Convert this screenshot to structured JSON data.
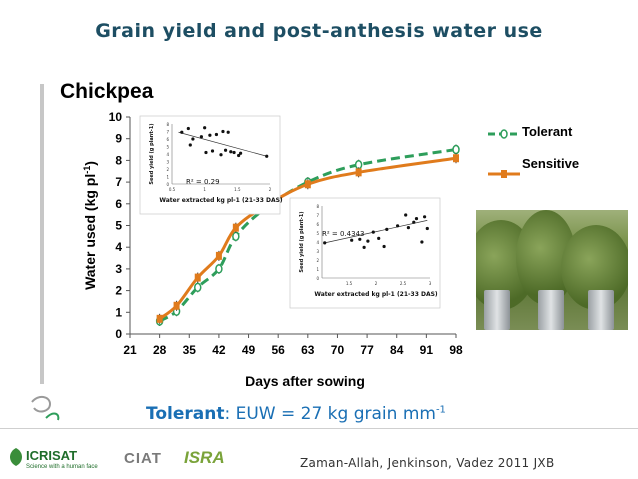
{
  "slide": {
    "title": "Grain yield and post-anthesis water use",
    "section": "Chickpea",
    "efficiency_label": "Tolerant",
    "efficiency_text": ": EUW = 27 kg grain mm",
    "efficiency_exp": "-1",
    "citation": "Zaman-Allah, Jenkinson, Vadez 2011 JXB",
    "logos": [
      "ICRISAT",
      "Science with a human face",
      "CIAT",
      "ISRA"
    ]
  },
  "colors": {
    "title": "#1d4e63",
    "tolerant": "#2e9e5b",
    "sensitive": "#e07b1c",
    "efficiency_text": "#1a6fb4"
  },
  "chart_data": [
    {
      "type": "line",
      "xlabel": "Days after sowing",
      "ylabel": "Water used (kg pl-1)",
      "xlim": [
        21,
        98
      ],
      "ylim": [
        0,
        10
      ],
      "xticks": [
        21,
        28,
        35,
        42,
        49,
        56,
        63,
        70,
        77,
        84,
        91,
        98
      ],
      "yticks": [
        0,
        1,
        2,
        3,
        4,
        5,
        6,
        7,
        8,
        9,
        10
      ],
      "grid": false,
      "legend": "right",
      "series": [
        {
          "name": "Tolerant",
          "style": "dashed",
          "color": "#2e9e5b",
          "x": [
            28,
            32,
            37,
            42,
            46,
            53,
            63,
            75,
            98
          ],
          "y": [
            0.6,
            1.05,
            2.15,
            3.0,
            4.5,
            5.8,
            7.0,
            7.8,
            8.5
          ]
        },
        {
          "name": "Sensitive",
          "style": "solid",
          "color": "#e07b1c",
          "x": [
            28,
            32,
            37,
            42,
            46,
            53,
            63,
            75,
            98
          ],
          "y": [
            0.7,
            1.3,
            2.6,
            3.6,
            4.9,
            5.9,
            6.9,
            7.45,
            8.1
          ]
        }
      ]
    },
    {
      "type": "scatter",
      "xlabel": "Water extracted kg pl-1 (21-33 DAS)",
      "ylabel": "Seed yield (g plant-1)",
      "annotation": "R² = 0.29",
      "xlim": [
        0.5,
        2.0
      ],
      "ylim": [
        0,
        8
      ],
      "xticks": [
        "0.5",
        "1",
        "1.5",
        "2"
      ],
      "yticks": [
        "0",
        "1",
        "2",
        "3",
        "4",
        "5",
        "6",
        "7",
        "8"
      ],
      "trend": {
        "x": [
          0.6,
          1.95
        ],
        "y": [
          6.9,
          3.7
        ]
      },
      "points": [
        [
          0.65,
          6.9
        ],
        [
          0.75,
          7.4
        ],
        [
          0.78,
          5.2
        ],
        [
          0.82,
          6.0
        ],
        [
          0.95,
          6.3
        ],
        [
          1.0,
          7.5
        ],
        [
          1.02,
          4.2
        ],
        [
          1.08,
          6.5
        ],
        [
          1.12,
          4.4
        ],
        [
          1.18,
          6.6
        ],
        [
          1.25,
          3.9
        ],
        [
          1.28,
          7.0
        ],
        [
          1.32,
          4.5
        ],
        [
          1.36,
          6.9
        ],
        [
          1.4,
          4.3
        ],
        [
          1.45,
          4.2
        ],
        [
          1.52,
          3.8
        ],
        [
          1.55,
          4.1
        ],
        [
          1.95,
          3.7
        ]
      ]
    },
    {
      "type": "scatter",
      "xlabel": "Water extracted kg pl-1 (21-33 DAS)",
      "ylabel": "Seed yield (g plant-1)",
      "annotation": "R² = 0.4343",
      "xlim": [
        1.0,
        3.0
      ],
      "ylim": [
        0,
        8
      ],
      "xticks": [
        "1.5",
        "2",
        "2.5",
        "3"
      ],
      "yticks": [
        "0",
        "1",
        "2",
        "3",
        "4",
        "5",
        "6",
        "7",
        "8"
      ],
      "trend": {
        "x": [
          1.05,
          2.95
        ],
        "y": [
          3.9,
          6.4
        ]
      },
      "points": [
        [
          1.05,
          3.9
        ],
        [
          1.55,
          4.2
        ],
        [
          1.7,
          4.3
        ],
        [
          1.78,
          3.4
        ],
        [
          1.85,
          4.1
        ],
        [
          1.95,
          5.1
        ],
        [
          2.05,
          4.4
        ],
        [
          2.15,
          3.5
        ],
        [
          2.2,
          5.4
        ],
        [
          2.4,
          5.8
        ],
        [
          2.55,
          7.0
        ],
        [
          2.6,
          5.6
        ],
        [
          2.7,
          6.2
        ],
        [
          2.75,
          6.6
        ],
        [
          2.85,
          4.0
        ],
        [
          2.9,
          6.8
        ],
        [
          2.95,
          5.5
        ]
      ]
    }
  ]
}
